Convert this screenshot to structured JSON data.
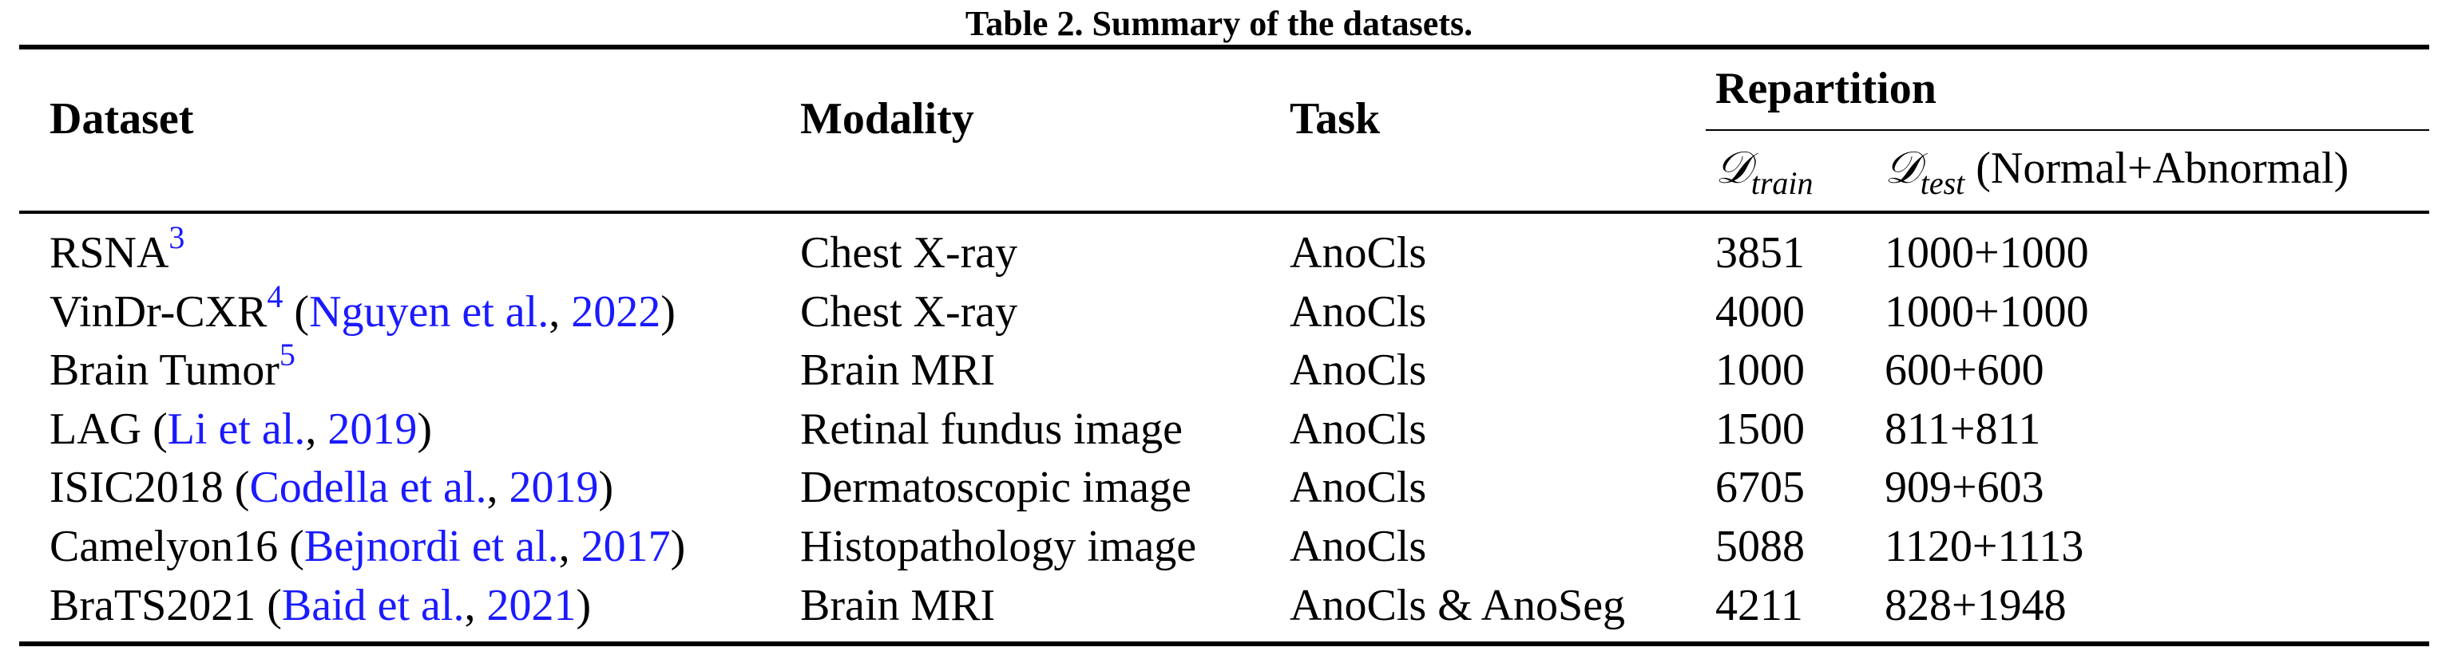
{
  "table": {
    "caption": "Table 2. Summary of the datasets.",
    "headers": {
      "dataset": "Dataset",
      "modality": "Modality",
      "task": "Task",
      "repartition": "Repartition",
      "train_symbol": "𝒟",
      "train_subscript": "train",
      "test_symbol": "𝒟",
      "test_subscript": "test",
      "test_suffix": " (Normal+Abnormal)"
    },
    "rows": [
      {
        "name": "RSNA",
        "footnote": "3",
        "cite_open": "",
        "cite_authors": "",
        "cite_sep": "",
        "cite_year": "",
        "cite_close": "",
        "modality": "Chest X-ray",
        "task": "AnoCls",
        "train": "3851",
        "test": "1000+1000"
      },
      {
        "name": "VinDr-CXR",
        "footnote": "4",
        "cite_open": " (",
        "cite_authors": "Nguyen et al.",
        "cite_sep": ", ",
        "cite_year": "2022",
        "cite_close": ")",
        "modality": "Chest X-ray",
        "task": "AnoCls",
        "train": "4000",
        "test": "1000+1000"
      },
      {
        "name": "Brain Tumor",
        "footnote": "5",
        "cite_open": "",
        "cite_authors": "",
        "cite_sep": "",
        "cite_year": "",
        "cite_close": "",
        "modality": "Brain MRI",
        "task": "AnoCls",
        "train": "1000",
        "test": "600+600"
      },
      {
        "name": "LAG",
        "footnote": "",
        "cite_open": " (",
        "cite_authors": "Li et al.",
        "cite_sep": ", ",
        "cite_year": "2019",
        "cite_close": ")",
        "modality": "Retinal fundus image",
        "task": "AnoCls",
        "train": "1500",
        "test": "811+811"
      },
      {
        "name": "ISIC2018",
        "footnote": "",
        "cite_open": " (",
        "cite_authors": "Codella et al.",
        "cite_sep": ", ",
        "cite_year": "2019",
        "cite_close": ")",
        "modality": "Dermatoscopic image",
        "task": "AnoCls",
        "train": "6705",
        "test": "909+603"
      },
      {
        "name": "Camelyon16",
        "footnote": "",
        "cite_open": " (",
        "cite_authors": "Bejnordi et al.",
        "cite_sep": ", ",
        "cite_year": "2017",
        "cite_close": ")",
        "modality": "Histopathology image",
        "task": "AnoCls",
        "train": "5088",
        "test": "1120+1113"
      },
      {
        "name": "BraTS2021",
        "footnote": "",
        "cite_open": " (",
        "cite_authors": "Baid et al.",
        "cite_sep": ", ",
        "cite_year": "2021",
        "cite_close": ")",
        "modality": "Brain MRI",
        "task": "AnoCls & AnoSeg",
        "train": "4211",
        "test": "828+1948"
      }
    ]
  }
}
